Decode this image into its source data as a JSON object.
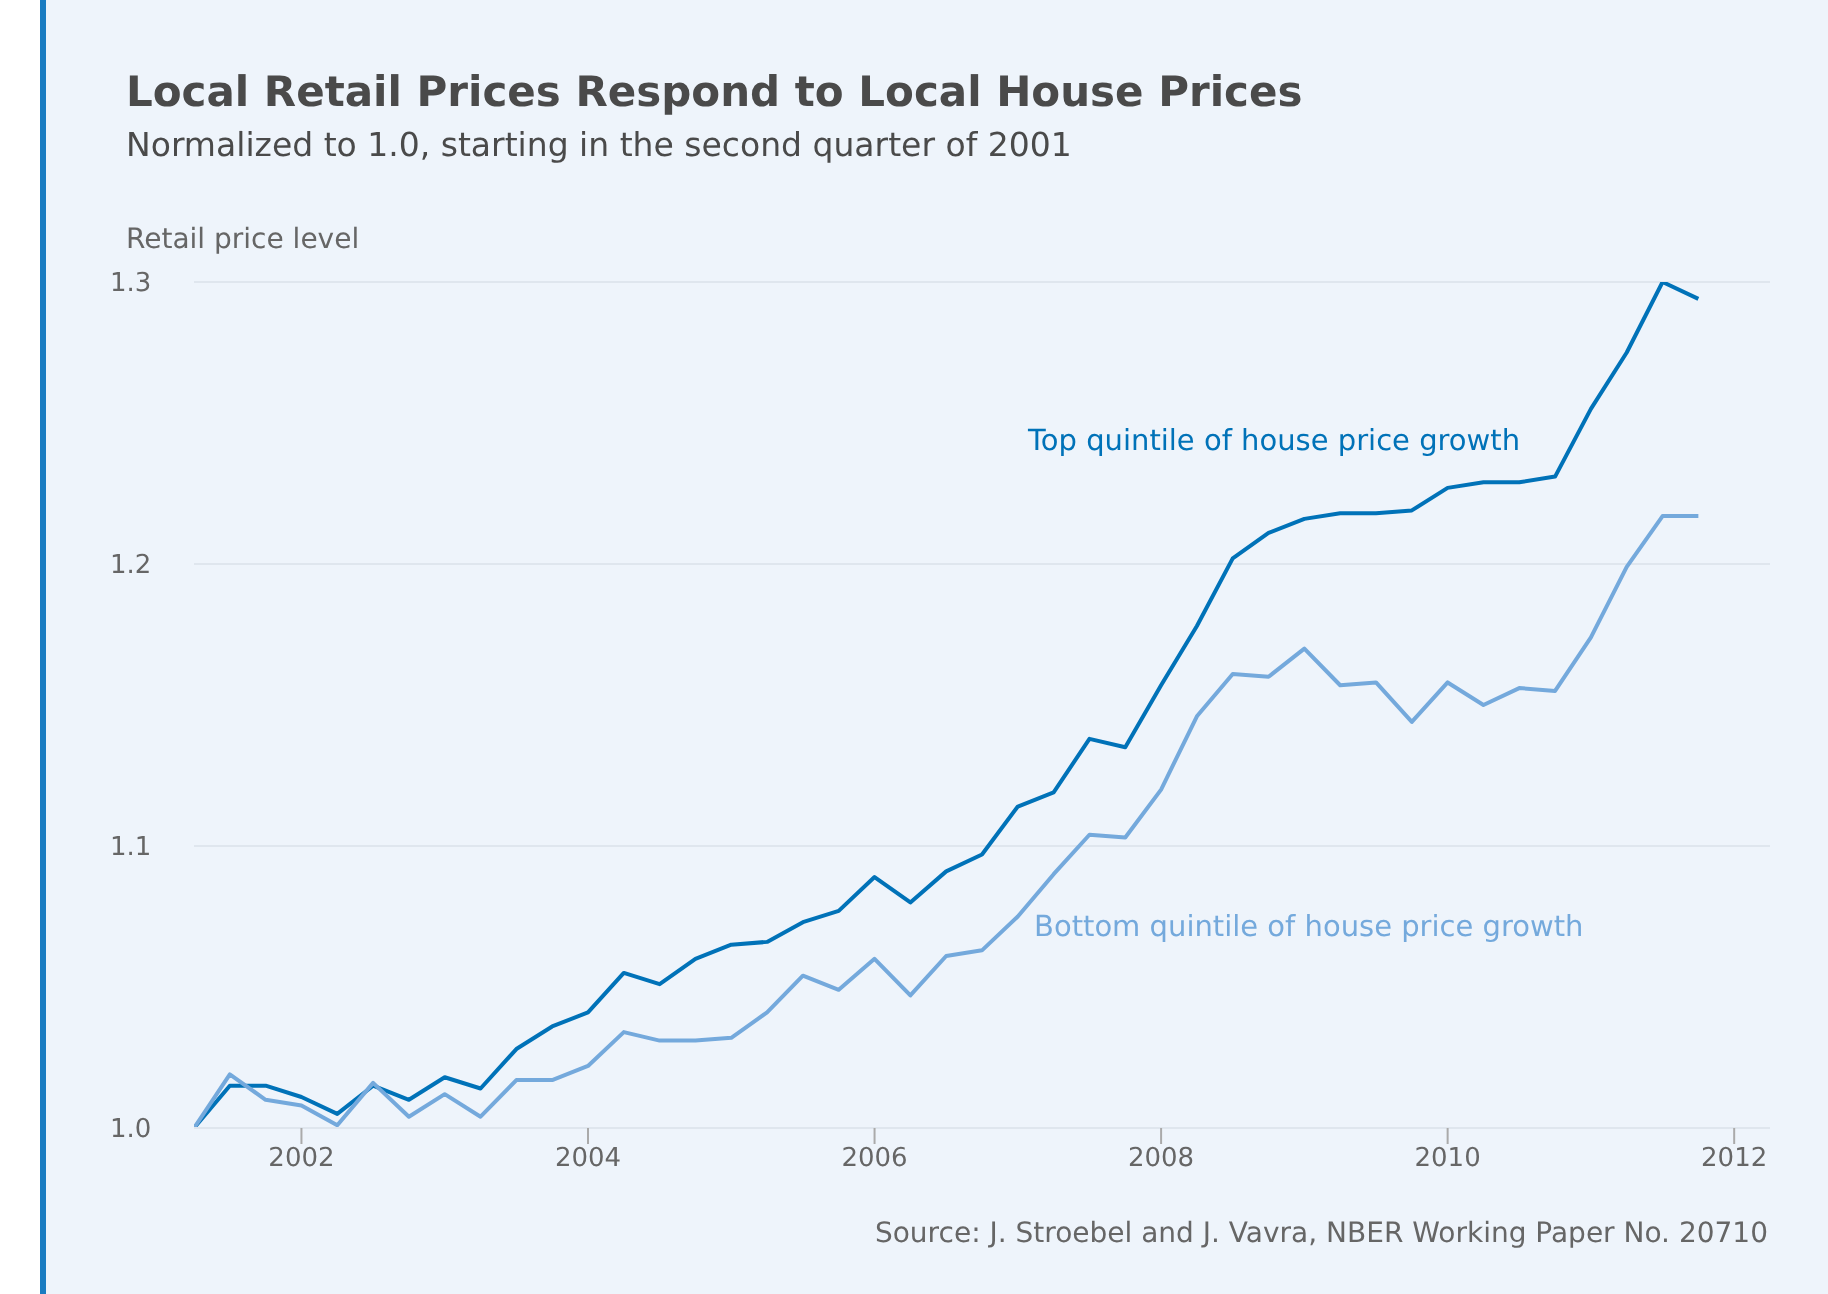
{
  "chart_data": {
    "type": "line",
    "title": "Local Retail Prices Respond to Local House Prices",
    "subtitle": "Normalized to 1.0, starting in the second quarter of 2001",
    "ylabel": "Retail price level",
    "x": [
      2001.25,
      2001.5,
      2001.75,
      2002,
      2002.25,
      2002.5,
      2002.75,
      2003,
      2003.25,
      2003.5,
      2003.75,
      2004,
      2004.25,
      2004.5,
      2004.75,
      2005,
      2005.25,
      2005.5,
      2005.75,
      2006,
      2006.25,
      2006.5,
      2006.75,
      2007,
      2007.25,
      2007.5,
      2007.75,
      2008,
      2008.25,
      2008.5,
      2008.75,
      2009,
      2009.25,
      2009.5,
      2009.75,
      2010,
      2010.25,
      2010.5,
      2010.75,
      2011,
      2011.25,
      2011.5,
      2011.75
    ],
    "series": [
      {
        "name": "Top quintile of house price growth",
        "color": "#0072b8",
        "values": [
          1.0,
          1.015,
          1.015,
          1.011,
          1.005,
          1.015,
          1.01,
          1.018,
          1.014,
          1.028,
          1.036,
          1.041,
          1.055,
          1.051,
          1.06,
          1.065,
          1.066,
          1.073,
          1.077,
          1.089,
          1.08,
          1.091,
          1.097,
          1.114,
          1.119,
          1.138,
          1.135,
          1.157,
          1.178,
          1.202,
          1.211,
          1.216,
          1.218,
          1.218,
          1.219,
          1.227,
          1.229,
          1.229,
          1.231,
          1.255,
          1.275,
          1.3,
          1.294
        ]
      },
      {
        "name": "Bottom quintile of house price growth",
        "color": "#74a9dc",
        "values": [
          1.0,
          1.019,
          1.01,
          1.008,
          1.001,
          1.016,
          1.004,
          1.012,
          1.004,
          1.017,
          1.017,
          1.022,
          1.034,
          1.031,
          1.031,
          1.032,
          1.041,
          1.054,
          1.049,
          1.06,
          1.047,
          1.061,
          1.063,
          1.075,
          1.09,
          1.104,
          1.103,
          1.12,
          1.146,
          1.161,
          1.16,
          1.17,
          1.157,
          1.158,
          1.144,
          1.158,
          1.15,
          1.156,
          1.155,
          1.174,
          1.199,
          1.217,
          1.217
        ]
      }
    ],
    "xlim": [
      2001.25,
      2012.25
    ],
    "xticks": [
      2002,
      2004,
      2006,
      2008,
      2010,
      2012
    ],
    "ylim": [
      1.0,
      1.3
    ],
    "yticks": [
      {
        "value": 1.0,
        "label": "1.0"
      },
      1.1,
      1.2,
      1.3
    ],
    "grid": "y",
    "annotations": [
      "Source: J. Stroebel and J. Vavra, NBER Working Paper No. 20710"
    ]
  }
}
